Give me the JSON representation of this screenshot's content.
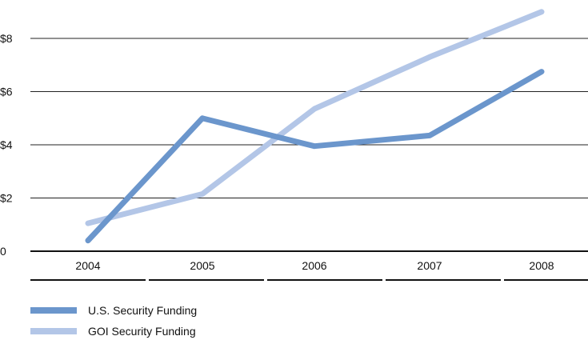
{
  "chart_data": {
    "type": "line",
    "categories": [
      "2004",
      "2005",
      "2006",
      "2007",
      "2008"
    ],
    "series": [
      {
        "name": "U.S. Security Funding",
        "values": [
          0.4,
          5.0,
          3.95,
          4.35,
          6.75
        ],
        "color": "#6b96cc"
      },
      {
        "name": "GOI Security Funding",
        "values": [
          1.05,
          2.15,
          5.35,
          7.3,
          9.0
        ],
        "color": "#b3c6e7"
      }
    ],
    "y_ticks": [
      {
        "value": 0,
        "label": "0"
      },
      {
        "value": 2,
        "label": "$2"
      },
      {
        "value": 4,
        "label": "$4"
      },
      {
        "value": 6,
        "label": "$6"
      },
      {
        "value": 8,
        "label": "$8"
      }
    ],
    "ylim": [
      0,
      9.4
    ],
    "grid": true,
    "legend_position": "bottom-left"
  }
}
